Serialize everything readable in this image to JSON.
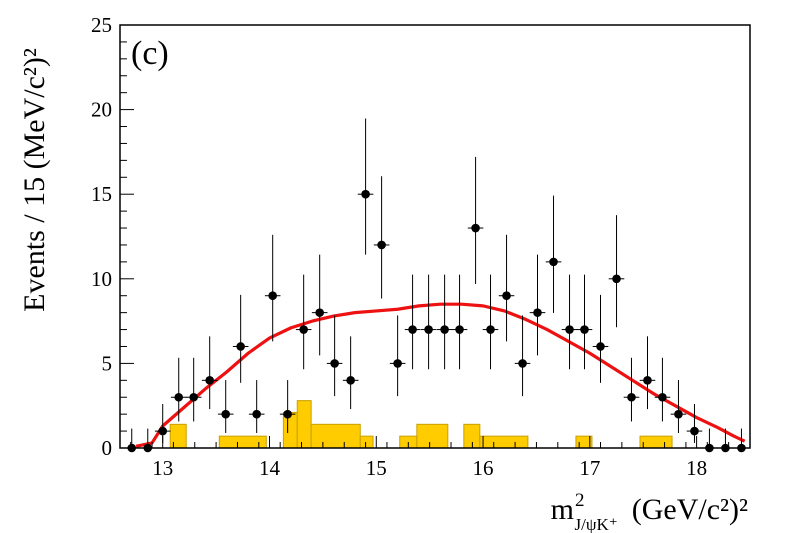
{
  "chart_data": {
    "type": "scatter",
    "panel_label": "(c)",
    "xlabel": {
      "main": "m",
      "superscript": "2",
      "subscript": "J/ψK⁺",
      "unit": "(GeV/c²)²"
    },
    "ylabel": "Events / 15 (MeV/c²)²",
    "xlim": [
      12.6,
      18.5
    ],
    "ylim": [
      0,
      25
    ],
    "x_ticks": [
      13,
      14,
      15,
      16,
      17,
      18
    ],
    "x_tick_labels": [
      "13",
      "14",
      "15",
      "16",
      "17",
      "18"
    ],
    "y_ticks": [
      0,
      5,
      10,
      15,
      20,
      25
    ],
    "y_tick_labels": [
      "0",
      "5",
      "10",
      "15",
      "20",
      "25"
    ],
    "grid": false,
    "bin_width": 0.146,
    "series": [
      {
        "kind": "points_with_errors",
        "color": "#000000",
        "x": [
          12.71,
          12.86,
          13.0,
          13.15,
          13.29,
          13.44,
          13.59,
          13.73,
          13.88,
          14.03,
          14.17,
          14.32,
          14.47,
          14.61,
          14.76,
          14.9,
          15.05,
          15.2,
          15.34,
          15.49,
          15.64,
          15.78,
          15.93,
          16.07,
          16.22,
          16.37,
          16.51,
          16.66,
          16.81,
          16.95,
          17.1,
          17.25,
          17.39,
          17.54,
          17.68,
          17.83,
          17.98,
          18.12,
          18.27,
          18.42
        ],
        "y": [
          0,
          0,
          1,
          3,
          3,
          4,
          2,
          6,
          2,
          9,
          2,
          7,
          8,
          5,
          4,
          15,
          12,
          5,
          7,
          7,
          7,
          7,
          13,
          7,
          9,
          5,
          8,
          11,
          7,
          7,
          6,
          10,
          3,
          4,
          3,
          2,
          1,
          0,
          0,
          0
        ]
      },
      {
        "kind": "fit_curve",
        "color": "#ee1111",
        "x": [
          12.75,
          12.9,
          13.0,
          13.2,
          13.4,
          13.6,
          13.8,
          14.0,
          14.2,
          14.4,
          14.6,
          14.8,
          15.0,
          15.2,
          15.4,
          15.6,
          15.8,
          16.0,
          16.2,
          16.4,
          16.6,
          16.8,
          17.0,
          17.2,
          17.4,
          17.6,
          17.8,
          18.0,
          18.2,
          18.35,
          18.45
        ],
        "y": [
          0.1,
          0.3,
          1.3,
          2.4,
          3.5,
          4.5,
          5.6,
          6.5,
          7.1,
          7.5,
          7.8,
          8.0,
          8.1,
          8.2,
          8.4,
          8.5,
          8.5,
          8.4,
          8.1,
          7.6,
          7.0,
          6.3,
          5.6,
          4.8,
          4.0,
          3.2,
          2.5,
          1.8,
          1.2,
          0.7,
          0.4
        ]
      },
      {
        "kind": "background_histogram",
        "color": "#ffcc00",
        "edge_color": "#c8a000",
        "bin_edges": [
          12.6,
          12.98,
          13.07,
          13.22,
          13.53,
          13.97,
          14.13,
          14.26,
          14.39,
          14.85,
          14.97,
          15.07,
          15.22,
          15.38,
          15.67,
          15.82,
          15.97,
          16.42,
          16.87,
          17.02,
          17.47,
          17.77,
          18.5
        ],
        "values": [
          0,
          0,
          1.4,
          0,
          0.7,
          0,
          2.1,
          2.8,
          1.4,
          0.7,
          0,
          0,
          0.7,
          1.4,
          0,
          1.4,
          0.7,
          0,
          0.7,
          0,
          0.7,
          0
        ]
      }
    ]
  }
}
